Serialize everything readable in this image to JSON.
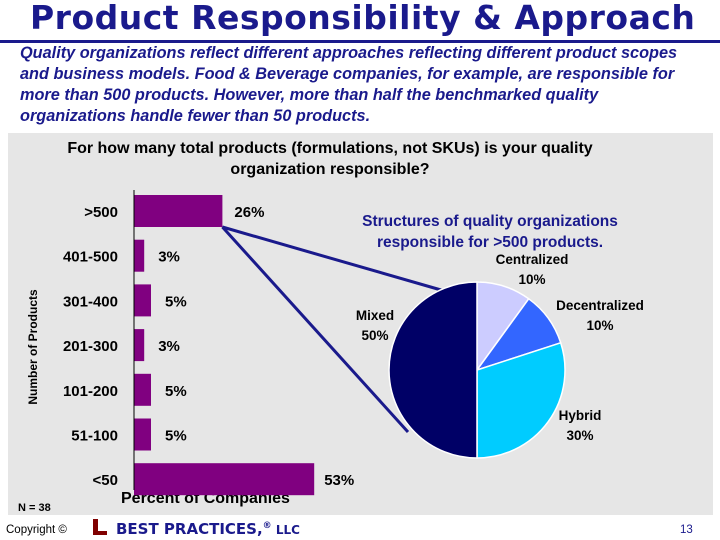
{
  "slide": {
    "title": "Product Responsibility & Approach",
    "intro": "Quality organizations reflect different approaches reflecting different product scopes and business models. Food & Beverage companies, for example, are responsible for more than 500 products. However, more than half the benchmarked quality organizations handle fewer than 50 products.",
    "question": "For how many total products (formulations, not SKUs) is your quality organization responsible?",
    "n_label": "N = 38",
    "pie_title": "Structures of quality organizations responsible for >500 products."
  },
  "footer": {
    "copyright": "Copyright ©",
    "brand": "BEST PRACTICES,",
    "registered": "®",
    "llc": " LLC",
    "page_number": "13"
  },
  "colors": {
    "title": "#1a1a8c",
    "bar": "#800080",
    "panel": "#e6e6e6",
    "pie_mixed": "#000066",
    "pie_centralized": "#ccccff",
    "pie_decentralized": "#3366ff",
    "pie_hybrid": "#00ccff"
  },
  "chart_data": [
    {
      "type": "bar",
      "orientation": "horizontal",
      "ylabel": "Number of Products",
      "xlabel": "Percent of Companies",
      "categories": [
        ">500",
        "401-500",
        "301-400",
        "201-300",
        "101-200",
        "51-100",
        "<50"
      ],
      "values": [
        26,
        3,
        5,
        3,
        5,
        5,
        53
      ],
      "value_labels": [
        "26%",
        "3%",
        "5%",
        "3%",
        "5%",
        "5%",
        "53%"
      ],
      "xlim": [
        0,
        53
      ],
      "grid": false,
      "legend": "none"
    },
    {
      "type": "pie",
      "title": "Structures of quality organizations responsible for >500 products.",
      "labels": [
        "Centralized",
        "Decentralized",
        "Hybrid",
        "Mixed"
      ],
      "values": [
        10,
        10,
        30,
        50
      ],
      "value_labels": [
        "10%",
        "10%",
        "30%",
        "50%"
      ],
      "legend": "none"
    }
  ]
}
